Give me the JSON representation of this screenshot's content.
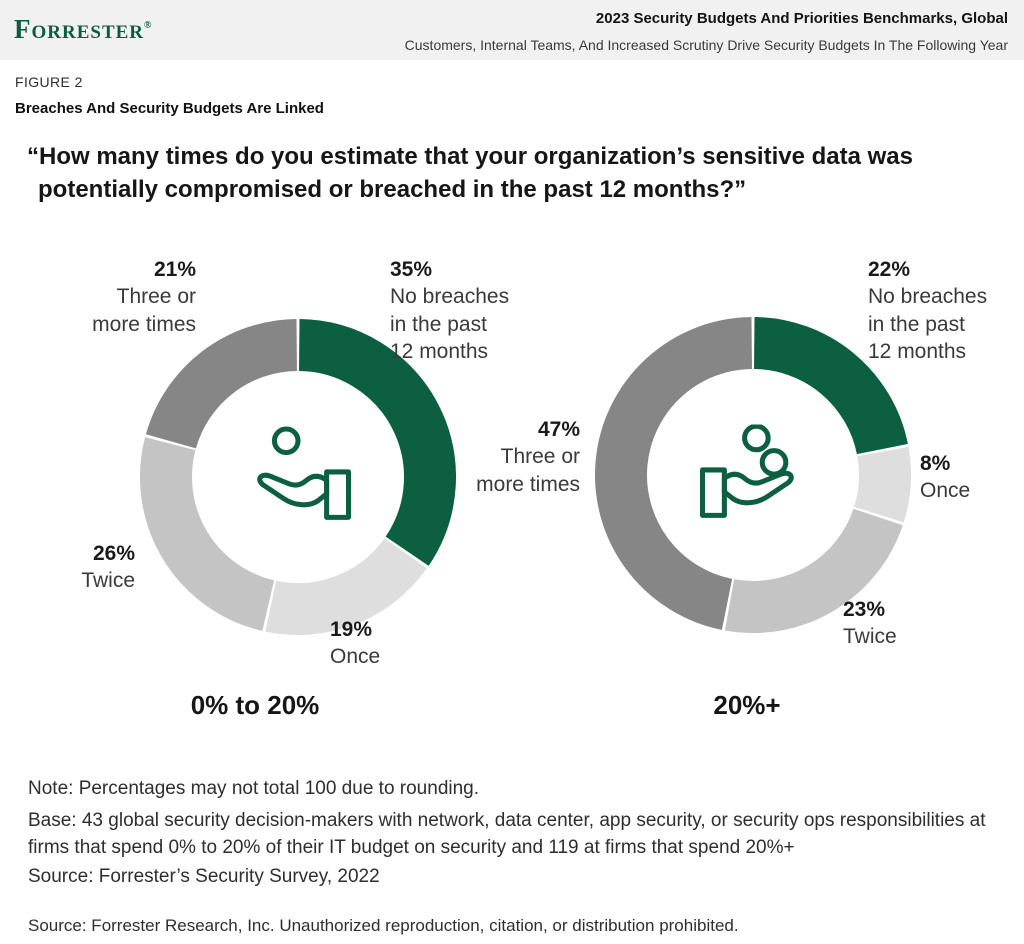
{
  "header": {
    "logo": "Forrester",
    "logo_registered": "®",
    "title": "2023 Security Budgets And Priorities Benchmarks, Global",
    "subtitle": "Customers, Internal Teams, And Increased Scrutiny Drive Security Budgets In The Following Year"
  },
  "figure": {
    "label": "FIGURE 2",
    "title": "Breaches And Security Budgets Are Linked"
  },
  "question": "“How many times do you estimate that your organization’s sensitive data was potentially compromised or breached in the past 12 months?”",
  "colors": {
    "brand_green": "#0d5f41",
    "gray_dark": "#868686",
    "gray_medium": "#c4c4c4",
    "gray_light": "#dedede",
    "header_band": "#f1f1f1"
  },
  "chart_data": [
    {
      "type": "pie",
      "subtype": "donut",
      "caption": "0% to 20%",
      "center_icon": "hand-receiving-coin-icon",
      "start_angle_deg": 0,
      "direction": "clockwise",
      "segments": [
        {
          "label": "No breaches in the past 12 months",
          "value": 35,
          "color": "#0d5f41"
        },
        {
          "label": "Once",
          "value": 19,
          "color": "#dedede"
        },
        {
          "label": "Twice",
          "value": 26,
          "color": "#c4c4c4"
        },
        {
          "label": "Three or more times",
          "value": 21,
          "color": "#868686"
        }
      ],
      "callouts": [
        {
          "pct": "21%",
          "label": "Three or\nmore times"
        },
        {
          "pct": "35%",
          "label": "No breaches\nin the past\n12 months"
        },
        {
          "pct": "26%",
          "label": "Twice"
        },
        {
          "pct": "19%",
          "label": "Once"
        }
      ]
    },
    {
      "type": "pie",
      "subtype": "donut",
      "caption": "20%+",
      "center_icon": "hand-receiving-coins-icon",
      "start_angle_deg": 0,
      "direction": "clockwise",
      "segments": [
        {
          "label": "No breaches in the past 12 months",
          "value": 22,
          "color": "#0d5f41"
        },
        {
          "label": "Once",
          "value": 8,
          "color": "#dedede"
        },
        {
          "label": "Twice",
          "value": 23,
          "color": "#c4c4c4"
        },
        {
          "label": "Three or more times",
          "value": 47,
          "color": "#868686"
        }
      ],
      "callouts": [
        {
          "pct": "22%",
          "label": "No breaches\nin the past\n12 months"
        },
        {
          "pct": "8%",
          "label": "Once"
        },
        {
          "pct": "47%",
          "label": "Three or\nmore times"
        },
        {
          "pct": "23%",
          "label": "Twice"
        }
      ]
    }
  ],
  "notes": {
    "note": "Note: Percentages may not total 100 due to rounding.",
    "base": "Base: 43 global security decision-makers with network, data center, app security, or security ops responsibilities at firms that spend 0% to 20% of their IT budget on security and 119 at firms that spend 20%+",
    "source": "Source: Forrester’s Security Survey, 2022",
    "footer": "Source: Forrester Research, Inc. Unauthorized reproduction, citation, or distribution prohibited."
  }
}
